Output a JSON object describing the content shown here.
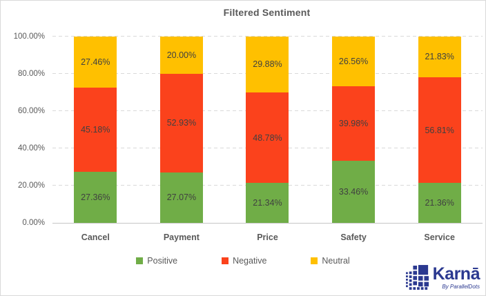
{
  "chart_data": {
    "type": "bar",
    "stacked": true,
    "title": "Filtered Sentiment",
    "categories": [
      "Cancel",
      "Payment",
      "Price",
      "Safety",
      "Service"
    ],
    "series": [
      {
        "name": "Positive",
        "color": "#70AD47",
        "values": [
          27.36,
          27.07,
          21.34,
          33.46,
          21.36
        ],
        "labels": [
          "27.36%",
          "27.07%",
          "21.34%",
          "33.46%",
          "21.36%"
        ]
      },
      {
        "name": "Negative",
        "color": "#FB421C",
        "values": [
          45.18,
          52.93,
          48.78,
          39.98,
          56.81
        ],
        "labels": [
          "45.18%",
          "52.93%",
          "48.78%",
          "39.98%",
          "56.81%"
        ]
      },
      {
        "name": "Neutral",
        "color": "#FFC000",
        "values": [
          27.46,
          20.0,
          29.88,
          26.56,
          21.83
        ],
        "labels": [
          "27.46%",
          "20.00%",
          "29.88%",
          "26.56%",
          "21.83%"
        ]
      }
    ],
    "y_ticks": [
      "0.00%",
      "20.00%",
      "40.00%",
      "60.00%",
      "80.00%",
      "100.00%"
    ],
    "ylim": [
      0,
      100
    ],
    "grid": "dashed-horizontal",
    "legend_position": "bottom",
    "colors": {
      "title_text": "#595959",
      "axis_text": "#595959",
      "data_label_text": "#404040",
      "gridline": "#D9D9D9",
      "axis_line": "#C6C6C6",
      "chart_border": "#D9D9D9"
    }
  },
  "logo": {
    "brand": "Karnā",
    "tagline": "By ParallelDots",
    "color": "#2B3990"
  }
}
